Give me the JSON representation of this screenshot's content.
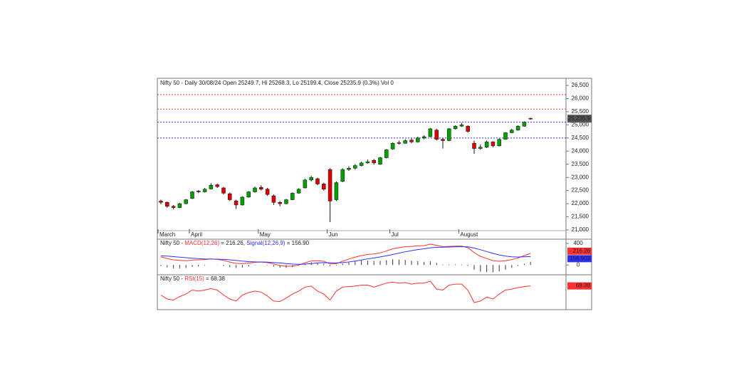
{
  "chart_data": {
    "type": "candlestick",
    "title": "Nifty 50 - Daily 30/08/24 Open 25249.7, Hi 25268.3, Lo 25199.4, Close 25235.9 (0.3%) Vol 0",
    "categories": [
      "March",
      null,
      null,
      null,
      null,
      "April",
      null,
      null,
      null,
      null,
      null,
      null,
      null,
      null,
      null,
      null,
      "May",
      null,
      null,
      null,
      null,
      null,
      null,
      null,
      null,
      null,
      null,
      "Jun",
      null,
      null,
      null,
      null,
      null,
      null,
      null,
      null,
      null,
      "Jul",
      null,
      null,
      null,
      null,
      null,
      null,
      null,
      null,
      null,
      null,
      "August",
      null,
      null,
      null,
      null,
      null,
      null,
      null,
      null,
      null,
      null,
      null
    ],
    "ohlc": [
      [
        22100,
        22150,
        21980,
        22050
      ],
      [
        22050,
        22080,
        21850,
        21900
      ],
      [
        21900,
        21950,
        21780,
        21850
      ],
      [
        21850,
        22030,
        21830,
        22000
      ],
      [
        22000,
        22180,
        21980,
        22150
      ],
      [
        22200,
        22480,
        22180,
        22450
      ],
      [
        22480,
        22520,
        22400,
        22450
      ],
      [
        22450,
        22600,
        22420,
        22550
      ],
      [
        22560,
        22780,
        22540,
        22700
      ],
      [
        22720,
        22760,
        22600,
        22650
      ],
      [
        22600,
        22640,
        22350,
        22400
      ],
      [
        22380,
        22420,
        22100,
        22150
      ],
      [
        22100,
        22150,
        21800,
        21950
      ],
      [
        21950,
        22280,
        21930,
        22250
      ],
      [
        22250,
        22480,
        22230,
        22450
      ],
      [
        22450,
        22650,
        22420,
        22600
      ],
      [
        22620,
        22700,
        22500,
        22550
      ],
      [
        22550,
        22600,
        22300,
        22350
      ],
      [
        22300,
        22350,
        21950,
        22050
      ],
      [
        22050,
        22100,
        21900,
        22000
      ],
      [
        22000,
        22180,
        21980,
        22150
      ],
      [
        22150,
        22430,
        22130,
        22400
      ],
      [
        22400,
        22580,
        22380,
        22550
      ],
      [
        22600,
        22950,
        22580,
        22900
      ],
      [
        22900,
        23060,
        22850,
        23000
      ],
      [
        22950,
        22990,
        22700,
        22750
      ],
      [
        22750,
        22800,
        22500,
        22550
      ],
      [
        23300,
        23350,
        21300,
        22100
      ],
      [
        22150,
        22850,
        22100,
        22800
      ],
      [
        22850,
        23350,
        22820,
        23300
      ],
      [
        23300,
        23420,
        23250,
        23350
      ],
      [
        23350,
        23500,
        23300,
        23450
      ],
      [
        23450,
        23600,
        23420,
        23550
      ],
      [
        23550,
        23680,
        23520,
        23600
      ],
      [
        23650,
        23700,
        23480,
        23550
      ],
      [
        23500,
        23780,
        23480,
        23750
      ],
      [
        23750,
        24080,
        23720,
        24050
      ],
      [
        24080,
        24330,
        24050,
        24300
      ],
      [
        24320,
        24400,
        24250,
        24300
      ],
      [
        24300,
        24450,
        24280,
        24400
      ],
      [
        24420,
        24480,
        24300,
        24350
      ],
      [
        24350,
        24550,
        24320,
        24500
      ],
      [
        24500,
        24600,
        24450,
        24550
      ],
      [
        24550,
        24880,
        24530,
        24850
      ],
      [
        24800,
        24850,
        24400,
        24450
      ],
      [
        24450,
        24500,
        24100,
        24400
      ],
      [
        24400,
        24880,
        24380,
        24850
      ],
      [
        24850,
        24980,
        24820,
        24950
      ],
      [
        24950,
        25080,
        24920,
        25000
      ],
      [
        24950,
        24980,
        24700,
        24750
      ],
      [
        24300,
        24400,
        23900,
        24100
      ],
      [
        24100,
        24250,
        24050,
        24150
      ],
      [
        24150,
        24400,
        24120,
        24350
      ],
      [
        24350,
        24380,
        24150,
        24200
      ],
      [
        24200,
        24480,
        24180,
        24450
      ],
      [
        24450,
        24720,
        24430,
        24700
      ],
      [
        24700,
        24850,
        24680,
        24800
      ],
      [
        24800,
        24980,
        24780,
        24950
      ],
      [
        24950,
        25130,
        24930,
        25100
      ],
      [
        25249.7,
        25268.3,
        25199.4,
        25235.9
      ]
    ],
    "up_color": "#00a000",
    "down_color": "#e00000",
    "ylim": [
      20675,
      26771
    ],
    "yticks": [
      {
        "value": 21000,
        "label": "21,000"
      },
      {
        "value": 21500,
        "label": "21,500"
      },
      {
        "value": 22000,
        "label": "22,000"
      },
      {
        "value": 22500,
        "label": "22,500"
      },
      {
        "value": 23000,
        "label": "23,000"
      },
      {
        "value": 23500,
        "label": "23,500"
      },
      {
        "value": 24000,
        "label": "24,000"
      },
      {
        "value": 24500,
        "label": "24,500"
      },
      {
        "value": 25000,
        "label": "25,000"
      },
      {
        "value": 25500,
        "label": "25,500"
      },
      {
        "value": 26000,
        "label": "26,000"
      },
      {
        "value": 26500,
        "label": "26,500"
      }
    ],
    "levels": [
      {
        "value": 26150,
        "color": "#ff3030"
      },
      {
        "value": 25600,
        "color": "#ff3030"
      },
      {
        "value": 25100,
        "color": "#3030ff"
      },
      {
        "value": 24500,
        "color": "#3030ff"
      }
    ],
    "last_label": "25,235.9",
    "macd": {
      "title_prefix": "Nifty 50 -",
      "series": [
        {
          "name": "MACD(12,26)",
          "text": "= 216.26,",
          "box": "216.26",
          "color": "#ff3030",
          "values": [
            150,
            120,
            95,
            85,
            80,
            90,
            95,
            100,
            110,
            105,
            85,
            55,
            30,
            25,
            35,
            50,
            55,
            45,
            20,
            -10,
            -25,
            -20,
            0,
            40,
            75,
            80,
            70,
            20,
            25,
            70,
            110,
            145,
            175,
            195,
            205,
            225,
            260,
            300,
            320,
            340,
            345,
            355,
            360,
            385,
            365,
            340,
            345,
            350,
            350,
            320,
            230,
            160,
            120,
            80,
            70,
            80,
            100,
            130,
            175,
            216.263
          ]
        },
        {
          "name": "Signal(12,26,9)",
          "text": "= 156.90",
          "box": "156.903",
          "color": "#3030ff",
          "values": [
            170,
            165,
            155,
            145,
            135,
            125,
            118,
            112,
            110,
            108,
            104,
            95,
            85,
            72,
            63,
            58,
            56,
            53,
            47,
            38,
            27,
            18,
            13,
            17,
            26,
            38,
            45,
            42,
            38,
            44,
            57,
            73,
            93,
            113,
            131,
            150,
            170,
            195,
            220,
            245,
            265,
            285,
            300,
            318,
            328,
            330,
            333,
            337,
            340,
            337,
            315,
            283,
            250,
            216,
            187,
            165,
            152,
            148,
            152,
            156.903
          ]
        }
      ],
      "histogram": [
        -20,
        -45,
        -60,
        -60,
        -55,
        -35,
        -23,
        -12,
        0,
        -3,
        -19,
        -40,
        -55,
        -47,
        -28,
        -8,
        -1,
        -8,
        -27,
        -48,
        -52,
        -38,
        -13,
        23,
        49,
        42,
        25,
        -22,
        -13,
        26,
        53,
        72,
        82,
        82,
        74,
        75,
        90,
        105,
        100,
        95,
        80,
        70,
        60,
        67,
        37,
        10,
        12,
        13,
        10,
        -17,
        -85,
        -123,
        -130,
        -136,
        -117,
        -85,
        -52,
        -18,
        23,
        59.36
      ],
      "ylim": [
        -168,
        465
      ],
      "yticks": [
        0,
        400
      ]
    },
    "rsi": {
      "title_prefix": "Nifty 50 -",
      "name": "RSI(15)",
      "text": "= 68.38",
      "box": "68.38",
      "color": "#ff3030",
      "values": [
        50,
        42,
        40,
        47,
        52,
        60,
        58,
        60,
        63,
        60,
        50,
        42,
        38,
        50,
        55,
        58,
        56,
        48,
        38,
        37,
        44,
        52,
        58,
        66,
        68,
        58,
        52,
        40,
        58,
        66,
        67,
        68,
        70,
        70,
        66,
        70,
        74,
        76,
        74,
        75,
        72,
        74,
        74,
        78,
        62,
        60,
        70,
        72,
        72,
        60,
        35,
        38,
        46,
        42,
        52,
        60,
        62,
        65,
        67,
        68.38
      ],
      "ylim": [
        25,
        85
      ]
    }
  }
}
